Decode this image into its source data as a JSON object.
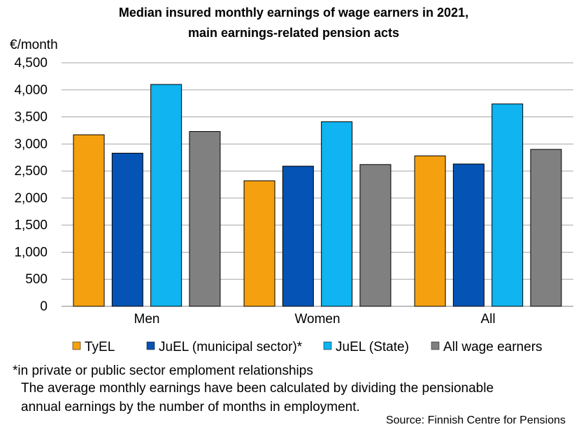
{
  "chart_data": {
    "type": "bar",
    "title_line1": "Median insured monthly earnings of wage earners in 2021,",
    "title_line2": "main earnings-related pension acts",
    "ylabel": "€/month",
    "ylim": [
      0,
      4500
    ],
    "yticks": [
      0,
      500,
      1000,
      1500,
      2000,
      2500,
      3000,
      3500,
      4000,
      4500
    ],
    "ytick_labels": [
      "0",
      "500",
      "1,000",
      "1,500",
      "2,000",
      "2,500",
      "3,000",
      "3,500",
      "4,000",
      "4,500"
    ],
    "categories": [
      "Men",
      "Women",
      "All"
    ],
    "grid": true,
    "legend_position": "bottom",
    "series": [
      {
        "name": "TyEL",
        "color": "#F5A00F",
        "values": [
          3170,
          2320,
          2780
        ]
      },
      {
        "name": "JuEL (municipal sector)*",
        "color": "#0553B4",
        "values": [
          2830,
          2590,
          2630
        ]
      },
      {
        "name": "JuEL (State)",
        "color": "#0FB4F0",
        "values": [
          4100,
          3410,
          3740
        ]
      },
      {
        "name": "All wage earners",
        "color": "#808080",
        "values": [
          3230,
          2620,
          2900
        ]
      }
    ]
  },
  "notes": {
    "footnote": "*in private or public sector emploment relationships",
    "line1": "The average monthly earnings have been calculated by dividing the pensionable",
    "line2": "annual earnings by the number of months in employment.",
    "source": "Source: Finnish Centre for Pensions"
  }
}
